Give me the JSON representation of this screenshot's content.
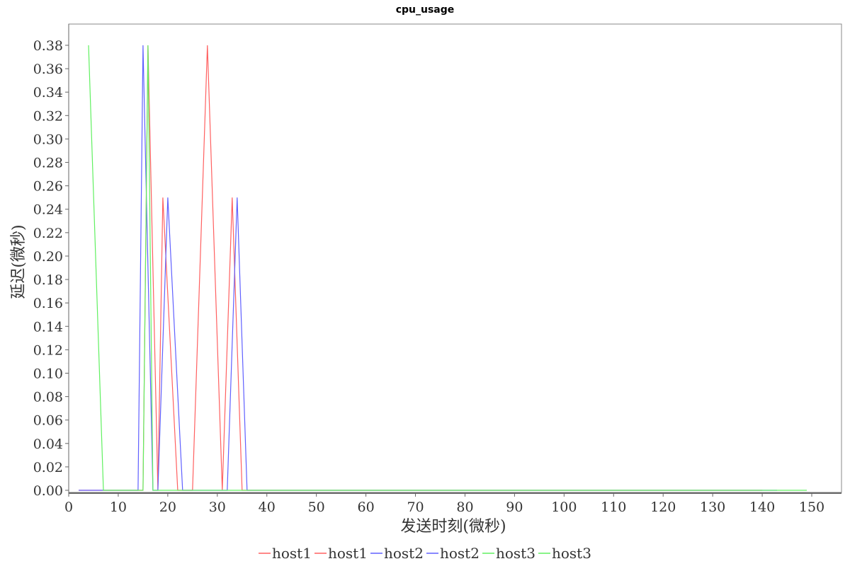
{
  "chart_data": {
    "type": "line",
    "title": "cpu_usage",
    "xlabel": "发送时刻(微秒)",
    "ylabel": "延迟(微秒)",
    "xlim": [
      0,
      157
    ],
    "ylim": [
      0,
      0.38
    ],
    "x_ticks": [
      0,
      10,
      20,
      30,
      40,
      50,
      60,
      70,
      80,
      90,
      100,
      110,
      120,
      130,
      140,
      150
    ],
    "y_ticks": [
      "0.00",
      "0.02",
      "0.04",
      "0.06",
      "0.08",
      "0.10",
      "0.12",
      "0.14",
      "0.16",
      "0.18",
      "0.20",
      "0.22",
      "0.24",
      "0.26",
      "0.28",
      "0.30",
      "0.32",
      "0.34",
      "0.36",
      "0.38"
    ],
    "grid": false,
    "legend_position": "bottom-center",
    "series": [
      {
        "name": "host1",
        "color": "#ff6060",
        "points": [
          [
            2,
            0
          ],
          [
            15,
            0
          ],
          [
            16,
            0.38
          ],
          [
            18,
            0
          ],
          [
            19,
            0.25
          ],
          [
            22,
            0
          ],
          [
            25,
            0
          ],
          [
            28,
            0.38
          ],
          [
            31,
            0
          ],
          [
            33,
            0.25
          ],
          [
            35,
            0
          ],
          [
            140,
            0
          ]
        ]
      },
      {
        "name": "host1",
        "color": "#ff6060",
        "points": []
      },
      {
        "name": "host2",
        "color": "#6060ff",
        "points": [
          [
            2,
            0
          ],
          [
            14,
            0
          ],
          [
            15,
            0.38
          ],
          [
            17,
            0
          ],
          [
            18,
            0
          ],
          [
            20,
            0.25
          ],
          [
            23,
            0
          ],
          [
            32,
            0
          ],
          [
            34,
            0.25
          ],
          [
            36,
            0
          ],
          [
            143,
            0
          ]
        ]
      },
      {
        "name": "host2",
        "color": "#6060ff",
        "points": []
      },
      {
        "name": "host3",
        "color": "#60f060",
        "points": [
          [
            4,
            0.38
          ],
          [
            7,
            0
          ],
          [
            15,
            0
          ],
          [
            16,
            0.38
          ],
          [
            17,
            0
          ],
          [
            149,
            0
          ]
        ]
      },
      {
        "name": "host3",
        "color": "#60f060",
        "points": []
      }
    ]
  }
}
